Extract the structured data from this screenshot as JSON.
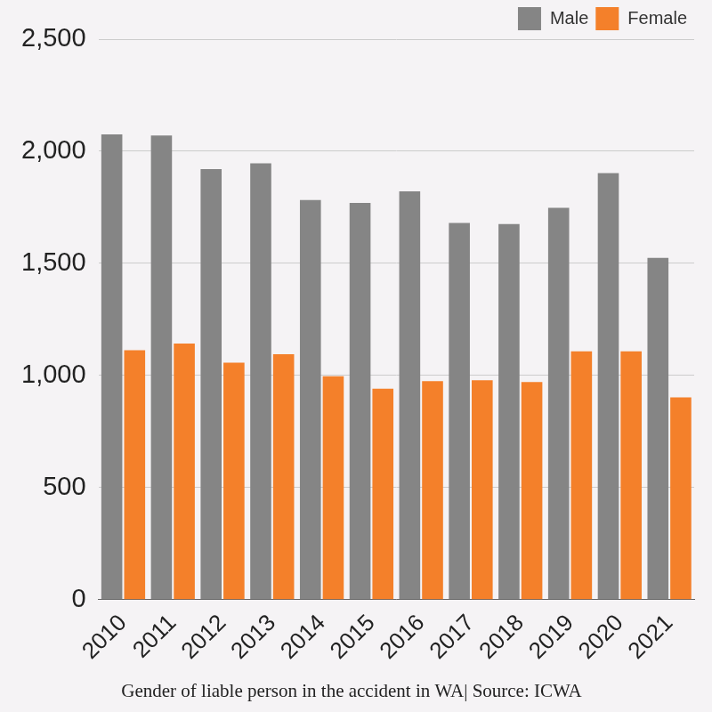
{
  "chart_data": {
    "type": "bar",
    "title": "Gender of liable person in the accident in WA| Source: ICWA",
    "categories": [
      "2010",
      "2011",
      "2012",
      "2013",
      "2014",
      "2015",
      "2016",
      "2017",
      "2018",
      "2019",
      "2020",
      "2021"
    ],
    "series": [
      {
        "name": "Male",
        "color": "#858585",
        "values": [
          2075,
          2070,
          1920,
          1946,
          1783,
          1770,
          1821,
          1680,
          1675,
          1748,
          1903,
          1525
        ]
      },
      {
        "name": "Female",
        "color": "#f4802a",
        "values": [
          1113,
          1143,
          1057,
          1095,
          997,
          941,
          975,
          979,
          971,
          1108,
          1108,
          902
        ]
      }
    ],
    "ylim": [
      0,
      2500
    ],
    "yticks": [
      0,
      500,
      {
        "value": 1000,
        "label": "1,000"
      },
      {
        "value": 1500,
        "label": "1,500"
      },
      {
        "value": 2000,
        "label": "2,000"
      },
      {
        "value": 2500,
        "label": "2,500"
      }
    ],
    "grid": true,
    "legend": "top-right"
  }
}
